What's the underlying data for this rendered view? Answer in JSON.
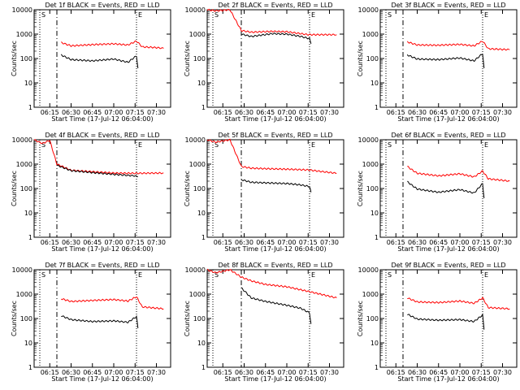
{
  "chart_data": [
    {
      "type": "line",
      "title": "Det 1f BLACK = Events, RED = LLD",
      "xlabel": "Start Time (17-Jul-12 06:04:00)",
      "ylabel": "Counts/sec",
      "yscale": "log",
      "ylim": [
        1,
        10000
      ],
      "x_tick_labels": [
        "06:15",
        "06:30",
        "06:45",
        "07:00",
        "07:15",
        "07:30"
      ],
      "y_tick_labels": [
        "1",
        "10",
        "100",
        "1000",
        "10000"
      ],
      "marker_labels": [
        "S",
        "E"
      ],
      "series": [
        {
          "name": "LLD",
          "color": "#ff0000",
          "x": [
            "06:23",
            "06:30",
            "06:45",
            "07:00",
            "07:10",
            "07:16",
            "07:20",
            "07:30",
            "07:35"
          ],
          "y": [
            450,
            330,
            370,
            400,
            360,
            520,
            300,
            280,
            260
          ]
        },
        {
          "name": "Events",
          "color": "#000000",
          "x": [
            "06:23",
            "06:30",
            "06:45",
            "07:00",
            "07:10",
            "07:16",
            "07:17"
          ],
          "y": [
            140,
            90,
            80,
            95,
            70,
            130,
            40
          ]
        }
      ]
    },
    {
      "type": "line",
      "title": "Det 2f BLACK = Events, RED = LLD",
      "xlabel": "Start Time (17-Jul-12 06:04:00)",
      "ylabel": "Counts/sec",
      "yscale": "log",
      "ylim": [
        1,
        10000
      ],
      "x_tick_labels": [
        "06:15",
        "06:30",
        "06:45",
        "07:00",
        "07:15",
        "07:30"
      ],
      "y_tick_labels": [
        "1",
        "10",
        "100",
        "1000",
        "10000"
      ],
      "marker_labels": [
        "S",
        "E"
      ],
      "series": [
        {
          "name": "LLD",
          "color": "#ff0000",
          "x": [
            "06:04",
            "06:10",
            "06:20",
            "06:28",
            "06:35",
            "06:50",
            "07:00",
            "07:15",
            "07:35"
          ],
          "y": [
            10000,
            9000,
            10000,
            1400,
            1200,
            1300,
            1250,
            950,
            950
          ]
        },
        {
          "name": "Events",
          "color": "#000000",
          "x": [
            "06:28",
            "06:35",
            "06:50",
            "07:00",
            "07:10",
            "07:16",
            "07:17"
          ],
          "y": [
            1000,
            800,
            1050,
            1000,
            800,
            650,
            400
          ]
        }
      ]
    },
    {
      "type": "line",
      "title": "Det 3f BLACK = Events, RED = LLD",
      "xlabel": "Start Time (17-Jul-12 06:04:00)",
      "ylabel": "Counts/sec",
      "yscale": "log",
      "ylim": [
        1,
        10000
      ],
      "x_tick_labels": [
        "06:15",
        "06:30",
        "06:45",
        "07:00",
        "07:15",
        "07:30"
      ],
      "y_tick_labels": [
        "1",
        "10",
        "100",
        "1000",
        "10000"
      ],
      "marker_labels": [
        "S",
        "E"
      ],
      "series": [
        {
          "name": "LLD",
          "color": "#ff0000",
          "x": [
            "06:23",
            "06:30",
            "06:45",
            "07:00",
            "07:10",
            "07:16",
            "07:20",
            "07:35"
          ],
          "y": [
            480,
            360,
            350,
            380,
            330,
            520,
            250,
            230
          ]
        },
        {
          "name": "Events",
          "color": "#000000",
          "x": [
            "06:23",
            "06:30",
            "06:45",
            "07:00",
            "07:10",
            "07:16",
            "07:17"
          ],
          "y": [
            140,
            95,
            90,
            105,
            80,
            160,
            40
          ]
        }
      ]
    },
    {
      "type": "line",
      "title": "Det 4f BLACK = Events, RED = LLD",
      "xlabel": "Start Time (17-Jul-12 06:04:00)",
      "ylabel": "Counts/sec",
      "yscale": "log",
      "ylim": [
        1,
        10000
      ],
      "x_tick_labels": [
        "06:15",
        "06:30",
        "06:45",
        "07:00",
        "07:15",
        "07:30"
      ],
      "y_tick_labels": [
        "1",
        "10",
        "100",
        "1000",
        "10000"
      ],
      "marker_labels": [
        "S",
        "E"
      ],
      "series": [
        {
          "name": "LLD",
          "color": "#ff0000",
          "x": [
            "06:04",
            "06:10",
            "06:15",
            "06:20",
            "06:30",
            "06:45",
            "07:00",
            "07:15",
            "07:35"
          ],
          "y": [
            10000,
            7000,
            9500,
            1000,
            560,
            490,
            430,
            420,
            430
          ]
        },
        {
          "name": "Events",
          "color": "#000000",
          "x": [
            "06:20",
            "06:30",
            "06:45",
            "07:00",
            "07:15",
            "07:17"
          ],
          "y": [
            900,
            540,
            450,
            380,
            330,
            300
          ]
        }
      ]
    },
    {
      "type": "line",
      "title": "Det 5f BLACK = Events, RED = LLD",
      "xlabel": "Start Time (17-Jul-12 06:04:00)",
      "ylabel": "Counts/sec",
      "yscale": "log",
      "ylim": [
        1,
        10000
      ],
      "x_tick_labels": [
        "06:15",
        "06:30",
        "06:45",
        "07:00",
        "07:15",
        "07:30"
      ],
      "y_tick_labels": [
        "1",
        "10",
        "100",
        "1000",
        "10000"
      ],
      "marker_labels": [
        "S",
        "E"
      ],
      "series": [
        {
          "name": "LLD",
          "color": "#ff0000",
          "x": [
            "06:04",
            "06:10",
            "06:20",
            "06:28",
            "06:35",
            "06:45",
            "07:00",
            "07:15",
            "07:35"
          ],
          "y": [
            10000,
            8000,
            10000,
            800,
            680,
            650,
            620,
            580,
            420
          ]
        },
        {
          "name": "Events",
          "color": "#000000",
          "x": [
            "06:28",
            "06:35",
            "06:45",
            "07:00",
            "07:10",
            "07:16",
            "07:17"
          ],
          "y": [
            230,
            180,
            170,
            160,
            140,
            120,
            70
          ]
        }
      ]
    },
    {
      "type": "line",
      "title": "Det 6f BLACK = Events, RED = LLD",
      "xlabel": "Start Time (17-Jul-12 06:04:00)",
      "ylabel": "Counts/sec",
      "yscale": "log",
      "ylim": [
        1,
        10000
      ],
      "x_tick_labels": [
        "06:15",
        "06:30",
        "06:45",
        "07:00",
        "07:15",
        "07:30"
      ],
      "y_tick_labels": [
        "1",
        "10",
        "100",
        "1000",
        "10000"
      ],
      "marker_labels": [
        "S",
        "E"
      ],
      "series": [
        {
          "name": "LLD",
          "color": "#ff0000",
          "x": [
            "06:23",
            "06:30",
            "06:45",
            "07:00",
            "07:10",
            "07:16",
            "07:20",
            "07:35"
          ],
          "y": [
            800,
            420,
            330,
            400,
            300,
            520,
            250,
            200
          ]
        },
        {
          "name": "Events",
          "color": "#000000",
          "x": [
            "06:23",
            "06:30",
            "06:45",
            "07:00",
            "07:10",
            "07:16",
            "07:17"
          ],
          "y": [
            190,
            95,
            70,
            90,
            65,
            160,
            40
          ]
        }
      ]
    },
    {
      "type": "line",
      "title": "Det 7f BLACK = Events, RED = LLD",
      "xlabel": "Start Time (17-Jul-12 06:04:00)",
      "ylabel": "Counts/sec",
      "yscale": "log",
      "ylim": [
        1,
        10000
      ],
      "x_tick_labels": [
        "06:15",
        "06:30",
        "06:45",
        "07:00",
        "07:15",
        "07:30"
      ],
      "y_tick_labels": [
        "1",
        "10",
        "100",
        "1000",
        "10000"
      ],
      "marker_labels": [
        "S",
        "E"
      ],
      "series": [
        {
          "name": "LLD",
          "color": "#ff0000",
          "x": [
            "06:23",
            "06:30",
            "06:45",
            "07:00",
            "07:10",
            "07:16",
            "07:20",
            "07:35"
          ],
          "y": [
            650,
            500,
            550,
            600,
            520,
            780,
            300,
            250
          ]
        },
        {
          "name": "Events",
          "color": "#000000",
          "x": [
            "06:23",
            "06:30",
            "06:45",
            "07:00",
            "07:10",
            "07:16",
            "07:17"
          ],
          "y": [
            130,
            90,
            75,
            80,
            70,
            120,
            40
          ]
        }
      ]
    },
    {
      "type": "line",
      "title": "Det 8f BLACK = Events, RED = LLD",
      "xlabel": "Start Time (17-Jul-12 06:04:00)",
      "ylabel": "Counts/sec",
      "yscale": "log",
      "ylim": [
        1,
        10000
      ],
      "x_tick_labels": [
        "06:15",
        "06:30",
        "06:45",
        "07:00",
        "07:15",
        "07:30"
      ],
      "y_tick_labels": [
        "1",
        "10",
        "100",
        "1000",
        "10000"
      ],
      "marker_labels": [
        "S",
        "E"
      ],
      "series": [
        {
          "name": "LLD",
          "color": "#ff0000",
          "x": [
            "06:04",
            "06:10",
            "06:20",
            "06:28",
            "06:35",
            "06:45",
            "07:00",
            "07:15",
            "07:35"
          ],
          "y": [
            10000,
            7500,
            10000,
            5000,
            3500,
            2500,
            2000,
            1300,
            700
          ]
        },
        {
          "name": "Events",
          "color": "#000000",
          "x": [
            "06:28",
            "06:35",
            "06:45",
            "07:00",
            "07:10",
            "07:16",
            "07:17"
          ],
          "y": [
            1800,
            700,
            500,
            350,
            260,
            170,
            60
          ]
        }
      ]
    },
    {
      "type": "line",
      "title": "Det 9f BLACK = Events, RED = LLD",
      "xlabel": "Start Time (17-Jul-12 06:04:00)",
      "ylabel": "Counts/sec",
      "yscale": "log",
      "ylim": [
        1,
        10000
      ],
      "x_tick_labels": [
        "06:15",
        "06:30",
        "06:45",
        "07:00",
        "07:15",
        "07:30"
      ],
      "y_tick_labels": [
        "1",
        "10",
        "100",
        "1000",
        "10000"
      ],
      "marker_labels": [
        "S",
        "E"
      ],
      "series": [
        {
          "name": "LLD",
          "color": "#ff0000",
          "x": [
            "06:23",
            "06:30",
            "06:45",
            "07:00",
            "07:10",
            "07:16",
            "07:20",
            "07:35"
          ],
          "y": [
            700,
            480,
            450,
            520,
            420,
            700,
            280,
            250
          ]
        },
        {
          "name": "Events",
          "color": "#000000",
          "x": [
            "06:23",
            "06:30",
            "06:45",
            "07:00",
            "07:10",
            "07:16",
            "07:17"
          ],
          "y": [
            150,
            95,
            85,
            90,
            75,
            140,
            35
          ]
        }
      ]
    }
  ]
}
